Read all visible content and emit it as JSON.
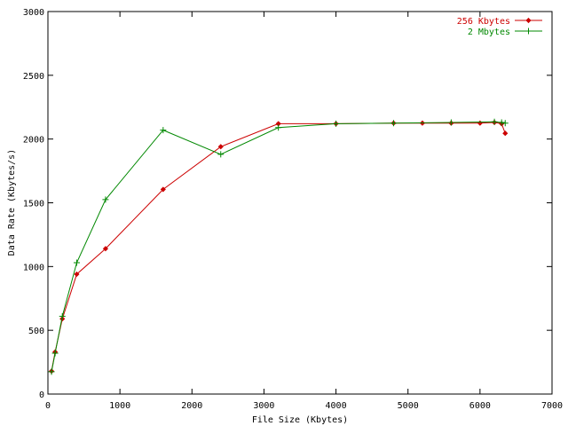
{
  "chart_data": {
    "type": "line",
    "title": "",
    "xlabel": "File Size (Kbytes)",
    "ylabel": "Data Rate (Kbytes/s)",
    "xlim": [
      0,
      7000
    ],
    "ylim": [
      0,
      3000
    ],
    "xticks": [
      0,
      1000,
      2000,
      3000,
      4000,
      5000,
      6000,
      7000
    ],
    "yticks": [
      0,
      500,
      1000,
      1500,
      2000,
      2500,
      3000
    ],
    "grid": false,
    "legend": "top-right",
    "series": [
      {
        "name": "256 Kbytes",
        "color": "#cc0000",
        "marker": "diamond",
        "points": [
          [
            50,
            180
          ],
          [
            100,
            330
          ],
          [
            200,
            590
          ],
          [
            400,
            940
          ],
          [
            800,
            1140
          ],
          [
            1600,
            1605
          ],
          [
            2400,
            1940
          ],
          [
            3200,
            2120
          ],
          [
            4000,
            2120
          ],
          [
            4800,
            2125
          ],
          [
            5200,
            2125
          ],
          [
            5600,
            2125
          ],
          [
            6000,
            2125
          ],
          [
            6200,
            2130
          ],
          [
            6300,
            2120
          ],
          [
            6350,
            2045
          ]
        ]
      },
      {
        "name": "2 Mbytes",
        "color": "#008800",
        "marker": "plus",
        "points": [
          [
            50,
            175
          ],
          [
            100,
            320
          ],
          [
            200,
            610
          ],
          [
            400,
            1030
          ],
          [
            800,
            1525
          ],
          [
            1600,
            2070
          ],
          [
            2400,
            1880
          ],
          [
            3200,
            2090
          ],
          [
            4000,
            2120
          ],
          [
            4800,
            2125
          ],
          [
            5600,
            2130
          ],
          [
            6200,
            2135
          ],
          [
            6300,
            2130
          ],
          [
            6350,
            2125
          ]
        ]
      }
    ]
  }
}
